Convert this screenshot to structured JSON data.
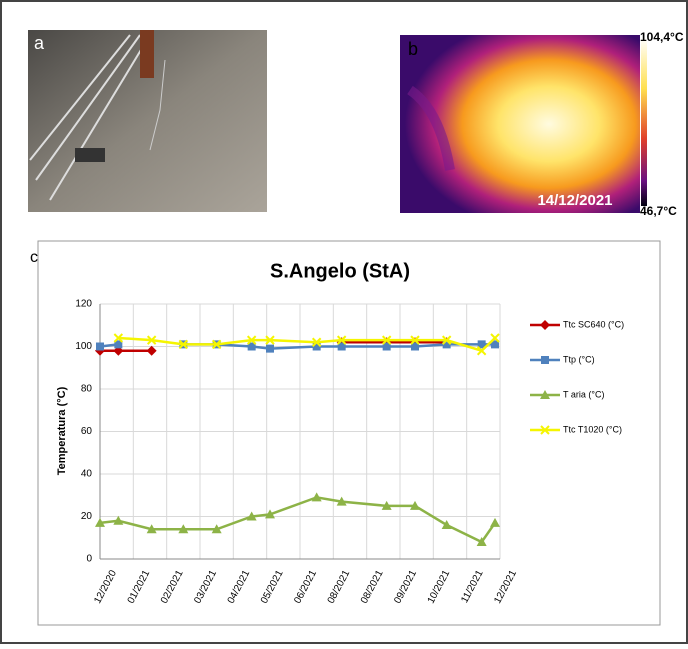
{
  "figure": {
    "panel_a": "a",
    "panel_b": "b",
    "panel_c": "c",
    "thermal_max": "104,4°C",
    "thermal_min": "46,7°C",
    "thermal_date": "14/12/2021"
  },
  "chart_data": {
    "type": "line",
    "title": "S.Angelo (StA)",
    "y_label": "Temperatura (°C)",
    "x": [
      0,
      0.55,
      1.55,
      2.5,
      3.5,
      4.55,
      5.1,
      6.5,
      7.25,
      8.6,
      9.45,
      10.4,
      11.45,
      11.85
    ],
    "xlim": [
      0,
      12
    ],
    "xticks": [
      {
        "value": 0,
        "label": "12/2020"
      },
      {
        "value": 1,
        "label": "01/2021"
      },
      {
        "value": 2,
        "label": "02/2021"
      },
      {
        "value": 3,
        "label": "03/2021"
      },
      {
        "value": 4,
        "label": "04/2021"
      },
      {
        "value": 5,
        "label": "05/2021"
      },
      {
        "value": 6,
        "label": "06/2021"
      },
      {
        "value": 7,
        "label": "08/2021"
      },
      {
        "value": 8,
        "label": "08/2021"
      },
      {
        "value": 9,
        "label": "09/2021"
      },
      {
        "value": 10,
        "label": "10/2021"
      },
      {
        "value": 11,
        "label": "11/2021"
      },
      {
        "value": 12,
        "label": "12/2021"
      }
    ],
    "ylim": [
      0,
      120
    ],
    "yticks": [
      0,
      20,
      40,
      60,
      80,
      100,
      120
    ],
    "grid": true,
    "series": [
      {
        "name": "Ttc SC640 (°C)",
        "color": "#c00000",
        "marker": "diamond",
        "values": [
          98,
          98,
          98,
          null,
          null,
          null,
          null,
          null,
          102,
          102,
          102,
          102,
          null,
          null
        ]
      },
      {
        "name": "Ttp (°C)",
        "color": "#4f81bd",
        "marker": "square",
        "values": [
          100,
          101,
          null,
          101,
          101,
          100,
          99,
          100,
          100,
          100,
          100,
          101,
          101,
          101
        ]
      },
      {
        "name": "T aria (°C)",
        "color": "#8db347",
        "marker": "triangle",
        "values": [
          17,
          18,
          14,
          14,
          14,
          20,
          21,
          29,
          27,
          25,
          25,
          16,
          8,
          17
        ]
      },
      {
        "name": "Ttc T1020 (°C)",
        "color": "#f5f500",
        "marker": "x",
        "values": [
          null,
          104,
          103,
          101,
          101,
          103,
          103,
          102,
          103,
          103,
          103,
          103,
          98,
          104
        ]
      }
    ]
  }
}
